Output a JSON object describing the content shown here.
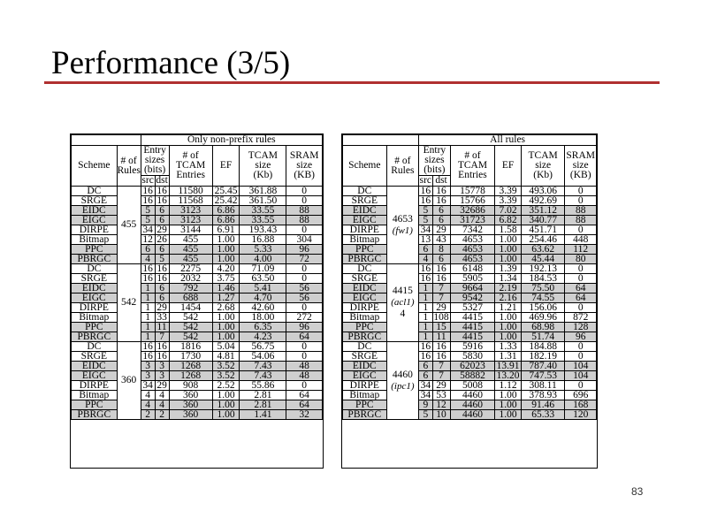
{
  "slide": {
    "title": "Performance (3/5)",
    "page_number": "83"
  },
  "left_table": {
    "caption": "Only non-prefix rules",
    "headers": {
      "scheme": "Scheme",
      "rules": [
        "# of",
        "Rules"
      ],
      "entry": [
        "Entry",
        "sizes",
        "(bits)"
      ],
      "src": "src",
      "dst": "dst",
      "tcam_entries": [
        "# of",
        "TCAM",
        "Entries"
      ],
      "ef": "EF",
      "tcam_size": [
        "TCAM",
        "size",
        "(Kb)"
      ],
      "sram_size": [
        "SRAM",
        "size",
        "(KB)"
      ]
    },
    "groups": [
      {
        "rules": "455",
        "name": "",
        "rows": [
          [
            "DC",
            "16",
            "16",
            "11580",
            "25.45",
            "361.88",
            "0"
          ],
          [
            "SRGE",
            "16",
            "16",
            "11568",
            "25.42",
            "361.50",
            "0"
          ],
          [
            "EIDC",
            "5",
            "6",
            "3123",
            "6.86",
            "33.55",
            "88"
          ],
          [
            "EIGC",
            "5",
            "6",
            "3123",
            "6.86",
            "33.55",
            "88"
          ],
          [
            "DIRPE",
            "34",
            "29",
            "3144",
            "6.91",
            "193.43",
            "0"
          ],
          [
            "Bitmap",
            "12",
            "26",
            "455",
            "1.00",
            "16.88",
            "304"
          ],
          [
            "PPC",
            "6",
            "6",
            "455",
            "1.00",
            "5.33",
            "96"
          ],
          [
            "PBRGC",
            "4",
            "5",
            "455",
            "1.00",
            "4.00",
            "72"
          ]
        ]
      },
      {
        "rules": "542",
        "name": "",
        "rows": [
          [
            "DC",
            "16",
            "16",
            "2275",
            "4.20",
            "71.09",
            "0"
          ],
          [
            "SRGE",
            "16",
            "16",
            "2032",
            "3.75",
            "63.50",
            "0"
          ],
          [
            "EIDC",
            "1",
            "6",
            "792",
            "1.46",
            "5.41",
            "56"
          ],
          [
            "EIGC",
            "1",
            "6",
            "688",
            "1.27",
            "4.70",
            "56"
          ],
          [
            "DIRPE",
            "1",
            "29",
            "1454",
            "2.68",
            "42.60",
            "0"
          ],
          [
            "Bitmap",
            "1",
            "33",
            "542",
            "1.00",
            "18.00",
            "272"
          ],
          [
            "PPC",
            "1",
            "11",
            "542",
            "1.00",
            "6.35",
            "96"
          ],
          [
            "PBRGC",
            "1",
            "7",
            "542",
            "1.00",
            "4.23",
            "64"
          ]
        ]
      },
      {
        "rules": "360",
        "name": "",
        "rows": [
          [
            "DC",
            "16",
            "16",
            "1816",
            "5.04",
            "56.75",
            "0"
          ],
          [
            "SRGE",
            "16",
            "16",
            "1730",
            "4.81",
            "54.06",
            "0"
          ],
          [
            "EIDC",
            "3",
            "3",
            "1268",
            "3.52",
            "7.43",
            "48"
          ],
          [
            "EIGC",
            "3",
            "3",
            "1268",
            "3.52",
            "7.43",
            "48"
          ],
          [
            "DIRPE",
            "34",
            "29",
            "908",
            "2.52",
            "55.86",
            "0"
          ],
          [
            "Bitmap",
            "4",
            "4",
            "360",
            "1.00",
            "2.81",
            "64"
          ],
          [
            "PPC",
            "4",
            "4",
            "360",
            "1.00",
            "2.81",
            "64"
          ],
          [
            "PBRGC",
            "2",
            "2",
            "360",
            "1.00",
            "1.41",
            "32"
          ]
        ]
      }
    ]
  },
  "right_table": {
    "caption": "All rules",
    "headers": {
      "scheme": "Scheme",
      "rules": [
        "# of",
        "Rules"
      ],
      "entry": [
        "Entry",
        "sizes",
        "(bits)"
      ],
      "src": "src",
      "dst": "dst",
      "tcam_entries": [
        "# of",
        "TCAM",
        "Entries"
      ],
      "ef": "EF",
      "tcam_size": [
        "TCAM",
        "size",
        "(Kb)"
      ],
      "sram_size": [
        "SRAM",
        "size",
        "(KB)"
      ]
    },
    "groups": [
      {
        "rules": "4653",
        "name": "(fw1)",
        "rows": [
          [
            "DC",
            "16",
            "16",
            "15778",
            "3.39",
            "493.06",
            "0"
          ],
          [
            "SRGE",
            "16",
            "16",
            "15766",
            "3.39",
            "492.69",
            "0"
          ],
          [
            "EIDC",
            "5",
            "6",
            "32686",
            "7.02",
            "351.12",
            "88"
          ],
          [
            "EIGC",
            "5",
            "6",
            "31723",
            "6.82",
            "340.77",
            "88"
          ],
          [
            "DIRPE",
            "34",
            "29",
            "7342",
            "1.58",
            "451.71",
            "0"
          ],
          [
            "Bitmap",
            "13",
            "43",
            "4653",
            "1.00",
            "254.46",
            "448"
          ],
          [
            "PPC",
            "6",
            "8",
            "4653",
            "1.00",
            "63.62",
            "112"
          ],
          [
            "PBRGC",
            "4",
            "6",
            "4653",
            "1.00",
            "45.44",
            "80"
          ]
        ]
      },
      {
        "rules": "4415",
        "name": "(acl1)",
        "extra": "4",
        "rows": [
          [
            "DC",
            "16",
            "16",
            "6148",
            "1.39",
            "192.13",
            "0"
          ],
          [
            "SRGE",
            "16",
            "16",
            "5905",
            "1.34",
            "184.53",
            "0"
          ],
          [
            "EIDC",
            "1",
            "7",
            "9664",
            "2.19",
            "75.50",
            "64"
          ],
          [
            "EIGC",
            "1",
            "7",
            "9542",
            "2.16",
            "74.55",
            "64"
          ],
          [
            "DIRPE",
            "1",
            "29",
            "5327",
            "1.21",
            "156.06",
            "0"
          ],
          [
            "Bitmap",
            "1",
            "108",
            "4415",
            "1.00",
            "469.96",
            "872"
          ],
          [
            "PPC",
            "1",
            "15",
            "4415",
            "1.00",
            "68.98",
            "128"
          ],
          [
            "PBRGC",
            "1",
            "11",
            "4415",
            "1.00",
            "51.74",
            "96"
          ]
        ]
      },
      {
        "rules": "4460",
        "name": "(ipc1)",
        "rows": [
          [
            "DC",
            "16",
            "16",
            "5916",
            "1.33",
            "184.88",
            "0"
          ],
          [
            "SRGE",
            "16",
            "16",
            "5830",
            "1.31",
            "182.19",
            "0"
          ],
          [
            "EIDC",
            "6",
            "7",
            "62023",
            "13.91",
            "787.40",
            "104"
          ],
          [
            "EIGC",
            "6",
            "7",
            "58882",
            "13.20",
            "747.53",
            "104"
          ],
          [
            "DIRPE",
            "34",
            "29",
            "5008",
            "1.12",
            "308.11",
            "0"
          ],
          [
            "Bitmap",
            "34",
            "53",
            "4460",
            "1.00",
            "378.93",
            "696"
          ],
          [
            "PPC",
            "9",
            "12",
            "4460",
            "1.00",
            "91.46",
            "168"
          ],
          [
            "PBRGC",
            "5",
            "10",
            "4460",
            "1.00",
            "65.33",
            "120"
          ]
        ]
      }
    ]
  }
}
